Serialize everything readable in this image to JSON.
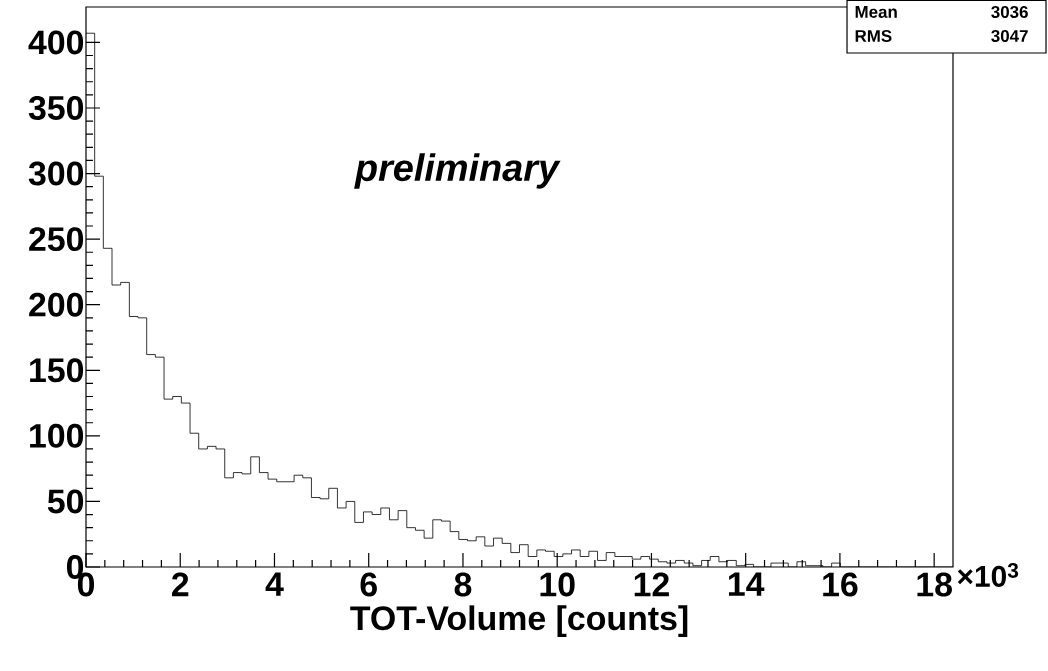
{
  "chart_data": {
    "type": "histogram",
    "xlabel": "TOT-Volume [counts]",
    "color": "#000000",
    "bins": [
      0,
      0.184,
      0.368,
      0.552,
      0.736,
      0.92,
      1.104,
      1.288,
      1.472,
      1.656,
      1.84,
      2.024,
      2.208,
      2.392,
      2.576,
      2.76,
      2.944,
      3.128,
      3.312,
      3.496,
      3.68,
      3.864,
      4.048,
      4.232,
      4.416,
      4.6,
      4.784,
      4.968,
      5.152,
      5.336,
      5.52,
      5.704,
      5.888,
      6.072,
      6.256,
      6.44,
      6.624,
      6.808,
      6.992,
      7.176,
      7.36,
      7.544,
      7.728,
      7.912,
      8.096,
      8.28,
      8.464,
      8.648,
      8.832,
      9.016,
      9.2,
      9.384,
      9.568,
      9.752,
      9.936,
      10.12,
      10.304,
      10.488,
      10.672,
      10.856,
      11.04,
      11.224,
      11.408,
      11.592,
      11.776,
      11.96,
      12.144,
      12.328,
      12.512,
      12.696,
      12.88,
      13.064,
      13.248,
      13.432,
      13.616,
      13.8,
      13.984,
      14.168,
      14.352,
      14.536,
      14.72,
      14.904,
      15.088,
      15.272,
      15.456,
      15.64,
      15.824,
      16.008,
      16.192,
      16.376,
      16.56,
      16.744,
      16.928,
      17.112,
      17.296,
      17.48,
      17.664,
      17.848,
      18.032,
      18.216,
      18.4
    ],
    "values": [
      407,
      298,
      243,
      215,
      217,
      191,
      190,
      162,
      160,
      128,
      130,
      125,
      102,
      90,
      92,
      90,
      68,
      72,
      71,
      84,
      72,
      67,
      65,
      65,
      70,
      68,
      53,
      52,
      60,
      45,
      50,
      34,
      42,
      40,
      45,
      36,
      43,
      30,
      28,
      22,
      36,
      35,
      27,
      21,
      20,
      23,
      16,
      22,
      18,
      11,
      17,
      8,
      13,
      12,
      8,
      10,
      13,
      8,
      12,
      5,
      11,
      8,
      8,
      6,
      8,
      6,
      4,
      3,
      5,
      3,
      1,
      5,
      8,
      4,
      5,
      1,
      2,
      0,
      0,
      3,
      3,
      0,
      4,
      1,
      1,
      0,
      3,
      0,
      0,
      0,
      0,
      0,
      0,
      0,
      0,
      0,
      0,
      0,
      0,
      0
    ],
    "xlim": [
      0,
      18.4
    ],
    "ylim": [
      0,
      427
    ],
    "xticks": [
      0,
      2,
      4,
      6,
      8,
      10,
      12,
      14,
      16,
      18
    ],
    "yticks": [
      0,
      50,
      100,
      150,
      200,
      250,
      300,
      350,
      400
    ],
    "annotations": [
      "*preliminary*",
      "Mean",
      "3036",
      "RMS",
      "3047",
      "×10$^{3}$"
    ]
  }
}
